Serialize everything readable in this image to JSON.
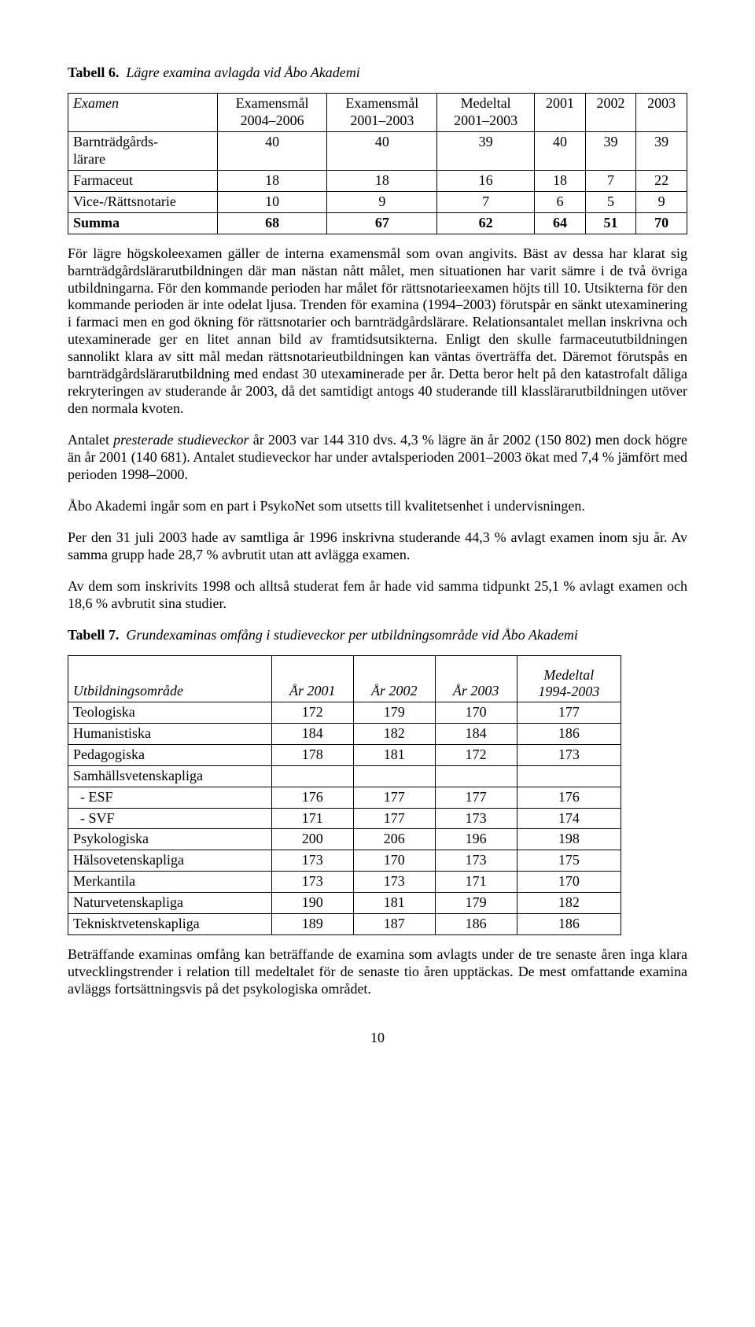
{
  "table6_caption_bold": "Tabell 6.",
  "table6_caption_italic": "Lägre examina avlagda vid Åbo Akademi",
  "table6": {
    "columns": [
      {
        "label": "Examen",
        "italic": true
      },
      {
        "label_lines": [
          "Examensmål",
          "2004–2006"
        ]
      },
      {
        "label_lines": [
          "Examensmål",
          "2001–2003"
        ]
      },
      {
        "label_lines": [
          "Medeltal",
          "2001–2003"
        ]
      },
      {
        "label": "2001"
      },
      {
        "label": "2002"
      },
      {
        "label": "2003"
      }
    ],
    "rows": [
      {
        "label_lines": [
          "Barnträdgårds-",
          "lärare"
        ],
        "cells": [
          "40",
          "40",
          "39",
          "40",
          "39",
          "39"
        ],
        "bold": false
      },
      {
        "label": "Farmaceut",
        "cells": [
          "18",
          "18",
          "16",
          "18",
          "7",
          "22"
        ],
        "bold": false
      },
      {
        "label": "Vice-/Rättsnotarie",
        "cells": [
          "10",
          "9",
          "7",
          "6",
          "5",
          "9"
        ],
        "bold": false
      },
      {
        "label": "Summa",
        "cells": [
          "68",
          "67",
          "62",
          "64",
          "51",
          "70"
        ],
        "bold": true
      }
    ]
  },
  "para1": "För lägre högskoleexamen gäller de interna examensmål som ovan angivits. Bäst av dessa har klarat sig barnträdgårdslärarutbildningen där man nästan nått målet, men situationen har varit sämre i de två övriga utbildningarna. För den kommande perioden har målet för rättsnotarieexamen höjts till 10. Utsikterna för den kommande perioden är inte odelat ljusa. Trenden för examina (1994–2003) förutspår en sänkt utexaminering i farmaci men en god ökning för rättsnotarier och barnträdgårdslärare. Relationsantalet mellan inskrivna och utexaminerade ger en litet annan bild av framtidsutsikterna. Enligt den skulle farmaceututbildningen sannolikt klara av sitt mål medan rättsnotarieutbildningen kan väntas överträffa det. Däremot förutspås en barnträdgårdslärarutbildning med endast 30 utexaminerade per år. Detta beror helt på den katastrofalt dåliga rekryteringen av studerande år 2003, då det samtidigt antogs 40 studerande till klasslärarutbildningen utöver den normala kvoten.",
  "para2_pre_italic": "Antalet ",
  "para2_italic": "presterade studieveckor",
  "para2_post_italic": " år 2003 var 144 310 dvs. 4,3 % lägre än år 2002 (150 802) men dock högre än år 2001 (140 681). Antalet studieveckor har under avtalsperioden 2001–2003 ökat med 7,4 % jämfört med perioden 1998–2000.",
  "para3": "Åbo Akademi ingår som en part i PsykoNet som utsetts till kvalitetsenhet i undervisningen.",
  "para4": "Per den 31 juli 2003 hade av samtliga år 1996 inskrivna studerande 44,3 % avlagt examen inom sju år. Av samma grupp hade 28,7 % avbrutit utan att avlägga examen.",
  "para5": "Av dem som inskrivits 1998 och alltså studerat fem år hade vid samma tidpunkt 25,1 % avlagt examen och 18,6 % avbrutit sina studier.",
  "table7_caption_bold": "Tabell 7.",
  "table7_caption_italic": "Grundexaminas omfång i studieveckor per utbildningsområde vid Åbo Akademi",
  "table7": {
    "columns": [
      {
        "label": "Utbildningsområde",
        "italic": true
      },
      {
        "label": "År 2001",
        "italic": true
      },
      {
        "label": "År 2002",
        "italic": true
      },
      {
        "label": "År 2003",
        "italic": true
      },
      {
        "label_lines": [
          "Medeltal",
          "1994‑2003"
        ],
        "italic": true
      }
    ],
    "rows": [
      {
        "label": "Teologiska",
        "cells": [
          "172",
          "179",
          "170",
          "177"
        ]
      },
      {
        "label": "Humanistiska",
        "cells": [
          "184",
          "182",
          "184",
          "186"
        ]
      },
      {
        "label": "Pedagogiska",
        "cells": [
          "178",
          "181",
          "172",
          "173"
        ]
      },
      {
        "label": "Samhällsvetenskapliga",
        "cells": [
          "",
          "",
          "",
          ""
        ]
      },
      {
        "label": "  - ESF",
        "cells": [
          "176",
          "177",
          "177",
          "176"
        ]
      },
      {
        "label": "  - SVF",
        "cells": [
          "171",
          "177",
          "173",
          "174"
        ]
      },
      {
        "label": "Psykologiska",
        "cells": [
          "200",
          "206",
          "196",
          "198"
        ]
      },
      {
        "label": "Hälsovetenskapliga",
        "cells": [
          "173",
          "170",
          "173",
          "175"
        ]
      },
      {
        "label": "Merkantila",
        "cells": [
          "173",
          "173",
          "171",
          "170"
        ]
      },
      {
        "label": "Naturvetenskapliga",
        "cells": [
          "190",
          "181",
          "179",
          "182"
        ]
      },
      {
        "label": "Teknisktvetenskapliga",
        "cells": [
          "189",
          "187",
          "186",
          "186"
        ]
      }
    ]
  },
  "para6": "Beträffande examinas omfång kan beträffande de examina som avlagts under de tre senaste åren inga klara utvecklingstrender i relation till medeltalet för de senaste tio åren upptäckas. De mest omfattande examina avläggs fortsättningsvis på det psykologiska området.",
  "page_number": "10"
}
